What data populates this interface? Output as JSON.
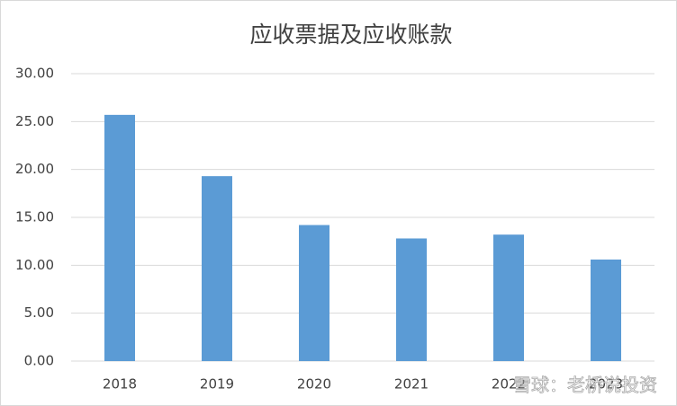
{
  "chart_data": {
    "type": "bar",
    "title": "应收票据及应收账款",
    "categories": [
      "2018",
      "2019",
      "2020",
      "2021",
      "2022",
      "2023"
    ],
    "values": [
      25.7,
      19.3,
      14.2,
      12.8,
      13.2,
      10.6
    ],
    "color": "#5b9bd5",
    "ylim": [
      0,
      30
    ],
    "yticks": [
      {
        "value": 0,
        "label": "0.00"
      },
      {
        "value": 5,
        "label": "5.00"
      },
      {
        "value": 10,
        "label": "10.00"
      },
      {
        "value": 15,
        "label": "15.00"
      },
      {
        "value": 20,
        "label": "20.00"
      },
      {
        "value": 25,
        "label": "25.00"
      },
      {
        "value": 30,
        "label": "30.00"
      }
    ],
    "grid": true,
    "watermark": "雪球：老桥说投资"
  }
}
